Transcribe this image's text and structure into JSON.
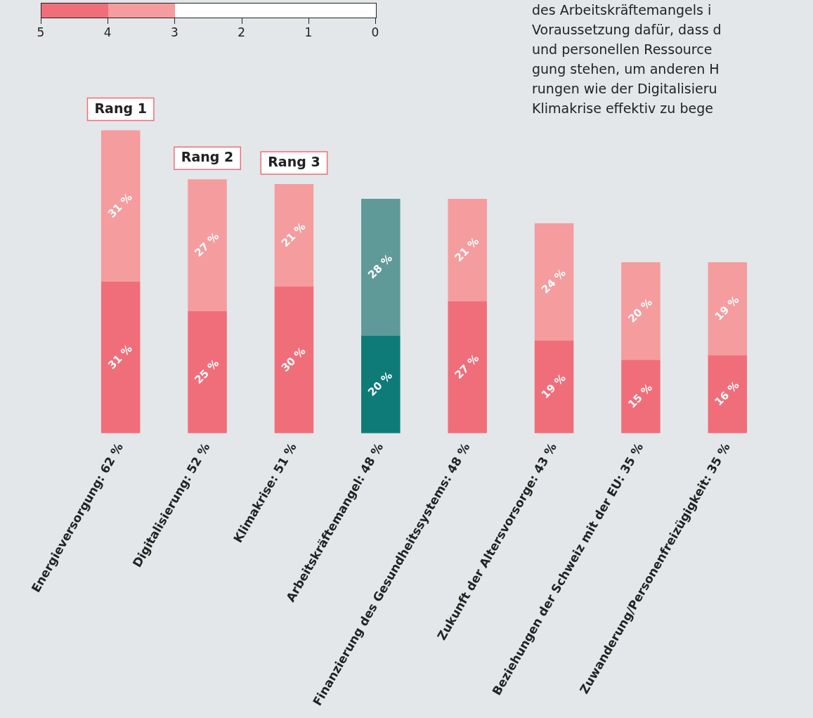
{
  "chart_data": {
    "type": "bar",
    "stacked": true,
    "subtitle": "des Arbeitskräftemangels i\nVoraussetzung dafür, dass d\nund personellen Ressource\ngung stehen, um anderen H\nrungen wie der Digitalisieru\nKlimakrise effektiv zu bege",
    "categories": [
      "Energieversorgung: 62 %",
      "Digitalisierung: 52 %",
      "Klimakrise: 51 %",
      "Arbeitskräftemangel: 48 %",
      "Finanzierung des Gesundheitssystems: 48 %",
      "Zukunft der Altersvorsorge: 43 %",
      "Beziehungen der Schweiz mit der EU: 35 %",
      "Zuwanderung/Personenfreizügigkeit: 35 %"
    ],
    "series": [
      {
        "color": "#f06e7a",
        "colors": [
          "#f06e7a",
          "#f06e7a",
          "#f06e7a",
          "#0e7b78",
          "#f06e7a",
          "#f06e7a",
          "#f06e7a",
          "#f06e7a"
        ],
        "values": [
          31,
          25,
          30,
          20,
          27,
          19,
          15,
          16
        ],
        "value_labels": [
          "31 %",
          "25 %",
          "30 %",
          "20 %",
          "27 %",
          "19 %",
          "15 %",
          "16 %"
        ]
      },
      {
        "color": "#f59c9e",
        "colors": [
          "#f59c9e",
          "#f59c9e",
          "#f59c9e",
          "#5f9a98",
          "#f59c9e",
          "#f59c9e",
          "#f59c9e",
          "#f59c9e"
        ],
        "values": [
          31,
          27,
          21,
          28,
          21,
          24,
          20,
          19
        ],
        "value_labels": [
          "31 %",
          "27 %",
          "21 %",
          "28 %",
          "21 %",
          "24 %",
          "20 %",
          "19 %"
        ]
      }
    ],
    "annotations": [
      "Rang 1",
      "Rang 2",
      "Rang 3"
    ],
    "clim": [
      5,
      0
    ],
    "cticks": [
      5,
      4,
      3,
      2,
      1,
      0
    ],
    "grid": false,
    "tick_labels": "x"
  }
}
